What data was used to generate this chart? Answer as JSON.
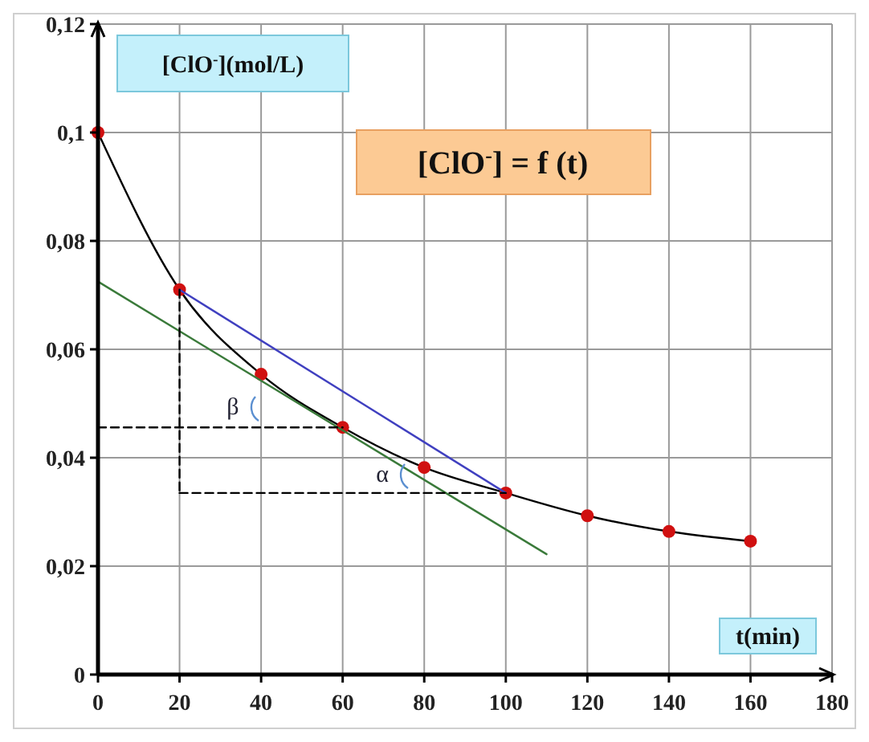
{
  "chart_data": {
    "type": "line",
    "title": "[ClO$^{-}$] = f (t)",
    "xlabel": "t(min)",
    "ylabel": "[ClO$^{-}$](mol/L)",
    "xlim": [
      0,
      180
    ],
    "xticks": [
      0,
      20,
      40,
      60,
      80,
      100,
      120,
      140,
      160,
      180
    ],
    "ylim": [
      0,
      0.12
    ],
    "yticks": [
      {
        "value": 0,
        "label": "0"
      },
      {
        "value": 0.02,
        "label": "0,02"
      },
      {
        "value": 0.04,
        "label": "0,04"
      },
      {
        "value": 0.06,
        "label": "0,06"
      },
      {
        "value": 0.08,
        "label": "0,08"
      },
      {
        "value": 0.1,
        "label": "0,1"
      },
      {
        "value": 0.12,
        "label": "0,12"
      }
    ],
    "grid": true,
    "series": [
      {
        "color": "#000000",
        "marker": "circle",
        "line_style": "solid",
        "x": [
          0,
          20,
          40,
          60,
          80,
          100,
          120,
          140,
          160
        ],
        "values": [
          0.1,
          0.071,
          0.0554,
          0.0456,
          0.0382,
          0.0335,
          0.0293,
          0.0264,
          0.0246
        ]
      },
      {
        "color": "#4040c0",
        "marker": "none",
        "line_style": "solid",
        "x": [
          20,
          100
        ],
        "values": [
          0.071,
          0.0335
        ]
      },
      {
        "color": "#3a7a3a",
        "marker": "none",
        "line_style": "solid",
        "x": [
          0,
          110
        ],
        "values": [
          0.0725,
          0.0222
        ]
      },
      {
        "color": "#000000",
        "marker": "none",
        "line_style": "dashed",
        "x": [
          20,
          20
        ],
        "values": [
          0.071,
          0.0335
        ]
      },
      {
        "color": "#000000",
        "marker": "none",
        "line_style": "dashed",
        "x": [
          0,
          60
        ],
        "values": [
          0.0456,
          0.0456
        ]
      },
      {
        "color": "#000000",
        "marker": "none",
        "line_style": "dashed",
        "x": [
          20,
          100
        ],
        "values": [
          0.0335,
          0.0335
        ]
      }
    ],
    "annotations": [
      "β",
      "α"
    ]
  }
}
